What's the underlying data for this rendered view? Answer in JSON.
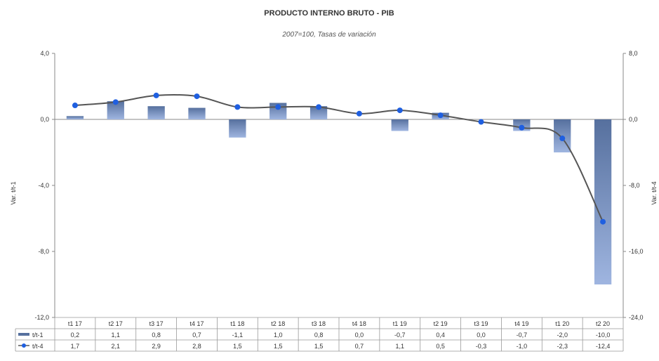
{
  "chart_data": {
    "type": "bar",
    "title": "PRODUCTO INTERNO BRUTO - PIB",
    "subtitle": "2007=100, Tasas de variación",
    "categories": [
      "t1 17",
      "t2 17",
      "t3 17",
      "t4 17",
      "t1 18",
      "t2 18",
      "t3 18",
      "t4 18",
      "t1 19",
      "t2 19",
      "t3 19",
      "t4 19",
      "t1 20",
      "t2 20"
    ],
    "series": [
      {
        "name": "t/t-1",
        "type": "bar",
        "axis": "left",
        "values": [
          0.2,
          1.1,
          0.8,
          0.7,
          -1.1,
          1.0,
          0.8,
          0.0,
          -0.7,
          0.4,
          0.0,
          -0.7,
          -2.0,
          -10.0
        ],
        "labels": [
          "0,2",
          "1,1",
          "0,8",
          "0,7",
          "-1,1",
          "1,0",
          "0,8",
          "0,0",
          "-0,7",
          "0,4",
          "0,0",
          "-0,7",
          "-2,0",
          "-10,0"
        ]
      },
      {
        "name": "t/t-4",
        "type": "line",
        "axis": "right",
        "values": [
          1.7,
          2.1,
          2.9,
          2.8,
          1.5,
          1.5,
          1.5,
          0.7,
          1.1,
          0.5,
          -0.3,
          -1.0,
          -2.3,
          -12.4
        ],
        "labels": [
          "1,7",
          "2,1",
          "2,9",
          "2,8",
          "1,5",
          "1,5",
          "1,5",
          "0,7",
          "1,1",
          "0,5",
          "-0,3",
          "-1,0",
          "-2,3",
          "-12,4"
        ]
      }
    ],
    "ylabel_left": "Var. t/t-1",
    "ylabel_right": "Var. t/t-4",
    "ylim_left": [
      -12,
      4
    ],
    "ylim_right": [
      -24,
      8
    ],
    "yticks_left": [
      "4,0",
      "0,0",
      "-4,0",
      "-8,0",
      "-12,0"
    ],
    "yticks_right": [
      "8,0",
      "0,0",
      "-8,0",
      "-16,0",
      "-24,0"
    ],
    "legend_placement": "data-table-left",
    "colors": {
      "bar_top": "#56709e",
      "bar_bottom": "#9fb5e0",
      "line": "#555555",
      "marker": "#1f5fe0"
    }
  }
}
